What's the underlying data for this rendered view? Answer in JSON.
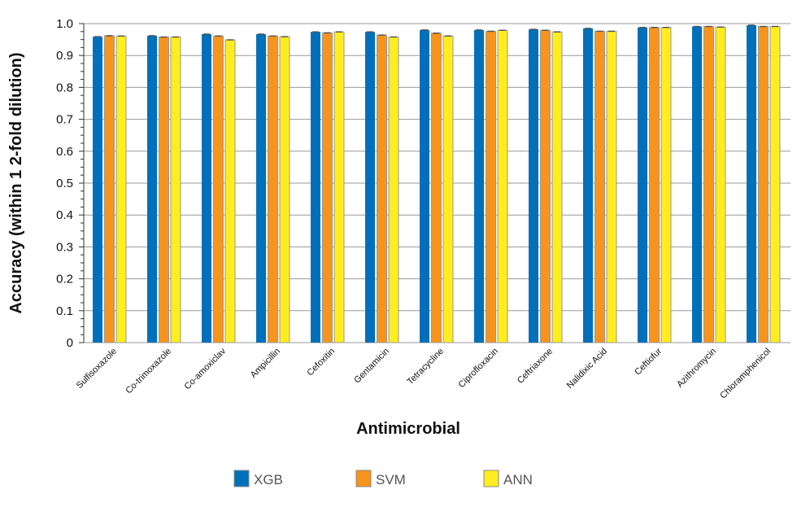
{
  "chart_data": {
    "type": "bar",
    "title": "",
    "xlabel": "Antimicrobial",
    "ylabel": "Accuracy (within 1 2-fold dilution)",
    "ylim": [
      0,
      1.0
    ],
    "yticks": [
      "0",
      "0.1",
      "0.2",
      "0.3",
      "0.4",
      "0.5",
      "0.6",
      "0.7",
      "0.8",
      "0.9",
      "1.0"
    ],
    "grid": true,
    "legend_position": "bottom",
    "categories": [
      "Sulfisoxazole",
      "Co-trimoxazole",
      "Co-amoxiclav",
      "Ampicillin",
      "Cefoxitin",
      "Gentamicin",
      "Tetracycline",
      "Ciprofloxacin",
      "Ceftriaxone",
      "Nalidixic Acid",
      "Ceftiofur",
      "Azithromycin",
      "Chloramphenicol"
    ],
    "series": [
      {
        "name": "XGB",
        "color": "#0070BA",
        "values": [
          0.959,
          0.962,
          0.967,
          0.967,
          0.974,
          0.974,
          0.98,
          0.98,
          0.982,
          0.985,
          0.988,
          0.991,
          0.995
        ]
      },
      {
        "name": "SVM",
        "color": "#F7941E",
        "values": [
          0.962,
          0.958,
          0.961,
          0.961,
          0.971,
          0.964,
          0.97,
          0.976,
          0.979,
          0.976,
          0.988,
          0.991,
          0.991
        ]
      },
      {
        "name": "ANN",
        "color": "#FFED1F",
        "values": [
          0.961,
          0.958,
          0.949,
          0.959,
          0.974,
          0.958,
          0.961,
          0.979,
          0.974,
          0.976,
          0.988,
          0.989,
          0.991
        ]
      }
    ]
  }
}
